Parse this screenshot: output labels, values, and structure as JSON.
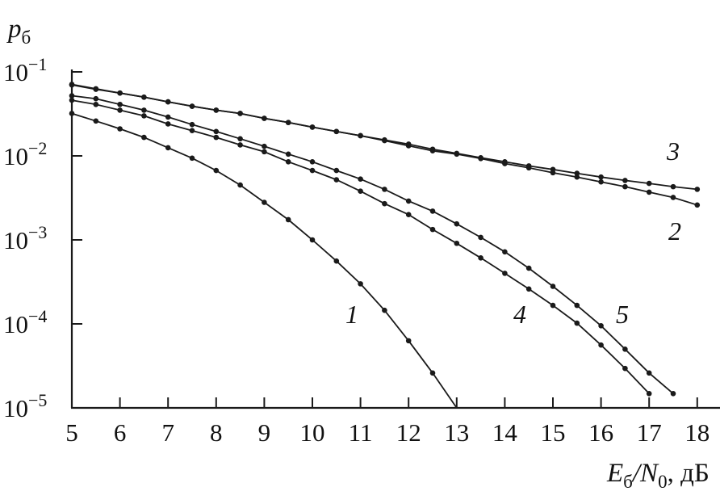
{
  "chart_data": {
    "type": "line",
    "title": "",
    "ylabel": "p",
    "ylabel_sub": "б",
    "xlabel_main": "E",
    "xlabel_sub1": "б",
    "xlabel_mid": "/N",
    "xlabel_sub2": "0",
    "xlabel_unit": ", дБ",
    "xlim": [
      5,
      18
    ],
    "ylim": [
      1e-05,
      0.1
    ],
    "yscale": "log",
    "grid": false,
    "x_ticks": [
      "5",
      "6",
      "7",
      "8",
      "9",
      "10",
      "11",
      "12",
      "13",
      "14",
      "15",
      "16",
      "17",
      "18"
    ],
    "y_ticks": [
      {
        "base": "10",
        "exp": "−1"
      },
      {
        "base": "10",
        "exp": "−2"
      },
      {
        "base": "10",
        "exp": "−3"
      },
      {
        "base": "10",
        "exp": "−4"
      },
      {
        "base": "10",
        "exp": "−5"
      }
    ],
    "line_color": "#1a1a1a",
    "series": [
      {
        "name": "1",
        "x": [
          5,
          5.5,
          6,
          6.5,
          7,
          7.5,
          8,
          8.5,
          9,
          9.5,
          10,
          10.5,
          11,
          11.5,
          12,
          12.5,
          13
        ],
        "y": [
          0.032,
          0.026,
          0.021,
          0.0166,
          0.0125,
          0.0094,
          0.0067,
          0.0045,
          0.0028,
          0.00174,
          0.001,
          0.00056,
          0.0003,
          0.000145,
          6.3e-05,
          2.6e-05,
          1e-05
        ]
      },
      {
        "name": "2",
        "x": [
          5,
          5.5,
          6,
          6.5,
          7,
          7.5,
          8,
          8.5,
          9,
          9.5,
          10,
          10.5,
          11,
          11.5,
          12,
          12.5,
          13,
          13.5,
          14,
          14.5,
          15,
          15.5,
          16,
          16.5,
          17,
          17.5,
          18
        ],
        "y": [
          0.07,
          0.062,
          0.056,
          0.05,
          0.044,
          0.039,
          0.035,
          0.032,
          0.028,
          0.025,
          0.022,
          0.0195,
          0.0174,
          0.0152,
          0.0132,
          0.0115,
          0.0105,
          0.0093,
          0.0081,
          0.0072,
          0.0063,
          0.0056,
          0.0049,
          0.0043,
          0.0037,
          0.0032,
          0.0026
        ]
      },
      {
        "name": "3",
        "x": [
          5,
          5.5,
          6,
          6.5,
          7,
          7.5,
          8,
          8.5,
          9,
          9.5,
          10,
          10.5,
          11,
          11.5,
          12,
          12.5,
          13,
          13.5,
          14,
          14.5,
          15,
          15.5,
          16,
          16.5,
          17,
          17.5,
          18
        ],
        "y": [
          0.071,
          0.063,
          0.056,
          0.05,
          0.044,
          0.039,
          0.035,
          0.032,
          0.028,
          0.025,
          0.022,
          0.0195,
          0.0174,
          0.0155,
          0.0138,
          0.012,
          0.0107,
          0.0095,
          0.0085,
          0.0076,
          0.0069,
          0.0062,
          0.0056,
          0.0051,
          0.0047,
          0.0043,
          0.004
        ]
      },
      {
        "name": "4",
        "x": [
          5,
          5.5,
          6,
          6.5,
          7,
          7.5,
          8,
          8.5,
          9,
          9.5,
          10,
          10.5,
          11,
          11.5,
          12,
          12.5,
          13,
          13.5,
          14,
          14.5,
          15,
          15.5,
          16,
          16.5,
          17
        ],
        "y": [
          0.046,
          0.041,
          0.035,
          0.03,
          0.024,
          0.02,
          0.0166,
          0.0135,
          0.0112,
          0.0085,
          0.0067,
          0.0052,
          0.0038,
          0.0027,
          0.002,
          0.00133,
          0.00091,
          0.00061,
          0.0004,
          0.00026,
          0.000166,
          0.000102,
          5.6e-05,
          2.95e-05,
          1.48e-05
        ]
      },
      {
        "name": "5",
        "x": [
          5,
          5.5,
          6,
          6.5,
          7,
          7.5,
          8,
          8.5,
          9,
          9.5,
          10,
          10.5,
          11,
          11.5,
          12,
          12.5,
          13,
          13.5,
          14,
          14.5,
          15,
          15.5,
          16,
          16.5,
          17,
          17.5
        ],
        "y": [
          0.052,
          0.048,
          0.041,
          0.035,
          0.029,
          0.0236,
          0.0195,
          0.016,
          0.013,
          0.0105,
          0.0085,
          0.0067,
          0.0053,
          0.004,
          0.0029,
          0.0022,
          0.00155,
          0.00107,
          0.00072,
          0.00046,
          0.00028,
          0.000166,
          9.5e-05,
          5e-05,
          2.6e-05,
          1.48e-05
        ]
      }
    ]
  }
}
